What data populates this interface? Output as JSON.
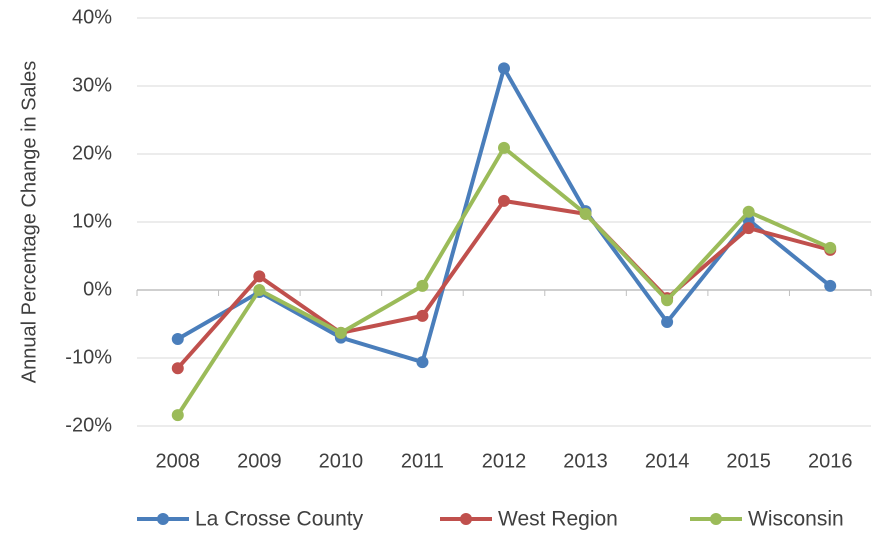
{
  "chart_data": {
    "type": "line",
    "y_label": "Annual Percentage Change in Sales",
    "categories": [
      "2008",
      "2009",
      "2010",
      "2011",
      "2012",
      "2013",
      "2014",
      "2015",
      "2016"
    ],
    "series": [
      {
        "name": "La Crosse County",
        "color": "#4a7ebb",
        "values": [
          -7.2,
          -0.3,
          -7,
          -10.6,
          32.6,
          11.6,
          -4.7,
          10.3,
          0.6
        ]
      },
      {
        "name": "West Region",
        "color": "#c0504d",
        "values": [
          -11.5,
          2,
          -6.3,
          -3.8,
          13.1,
          11.2,
          -1.2,
          9.1,
          5.9
        ]
      },
      {
        "name": "Wisconsin",
        "color": "#9bbb59",
        "values": [
          -18.4,
          0,
          -6.3,
          0.6,
          20.9,
          11.2,
          -1.5,
          11.5,
          6.2
        ]
      }
    ],
    "ylim": [
      -20,
      40
    ],
    "yticks": [
      {
        "value": -20,
        "label": "-20%"
      },
      {
        "value": -10,
        "label": "-10%"
      },
      {
        "value": 0,
        "label": "0%"
      },
      {
        "value": 10,
        "label": "10%"
      },
      {
        "value": 20,
        "label": "20%"
      },
      {
        "value": 30,
        "label": "30%"
      },
      {
        "value": 40,
        "label": "40%"
      }
    ],
    "grid": true,
    "legend": "bottom"
  }
}
